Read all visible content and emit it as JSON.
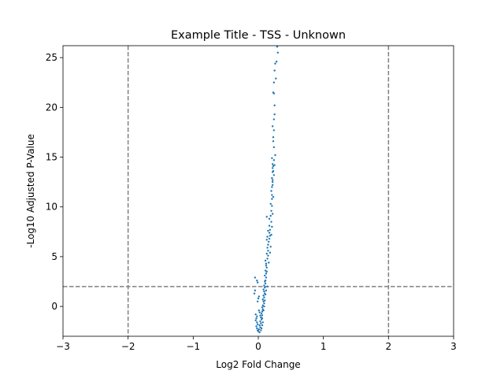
{
  "chart_data": {
    "type": "scatter",
    "title": "Example Title - TSS - Unknown",
    "xlabel": "Log2 Fold Change",
    "ylabel": "-Log10 Adjusted P-Value",
    "xlim": [
      -3,
      3
    ],
    "ylim": [
      -3,
      26.2
    ],
    "xticks": [
      -3,
      -2,
      -1,
      0,
      1,
      2,
      3
    ],
    "yticks": [
      0,
      5,
      10,
      15,
      20,
      25
    ],
    "grid": false,
    "point_color": "#1f77b4",
    "threshold_color": "#808080",
    "thresholds": {
      "x": [
        -2,
        2
      ],
      "y": [
        2
      ]
    },
    "series": [
      {
        "points": [
          [
            0.29,
            26.1
          ],
          [
            0.3,
            25.5
          ],
          [
            0.28,
            24.6
          ],
          [
            0.26,
            24.4
          ],
          [
            0.25,
            23.7
          ],
          [
            0.24,
            22.5
          ],
          [
            0.23,
            21.5
          ],
          [
            0.24,
            21.4
          ],
          [
            0.25,
            19.3
          ],
          [
            0.24,
            18.8
          ],
          [
            0.24,
            17.7
          ],
          [
            0.23,
            17.0
          ],
          [
            0.23,
            16.6
          ],
          [
            0.26,
            15.2
          ],
          [
            0.24,
            14.7
          ],
          [
            0.21,
            14.9
          ],
          [
            0.22,
            14.3
          ],
          [
            0.23,
            14.1
          ],
          [
            0.22,
            13.9
          ],
          [
            0.22,
            13.5
          ],
          [
            0.21,
            12.9
          ],
          [
            0.22,
            12.7
          ],
          [
            0.22,
            12.2
          ],
          [
            0.21,
            12.0
          ],
          [
            0.2,
            11.6
          ],
          [
            0.21,
            11.2
          ],
          [
            0.21,
            10.8
          ],
          [
            0.19,
            10.3
          ],
          [
            0.21,
            10.1
          ],
          [
            0.2,
            9.6
          ],
          [
            0.19,
            9.1
          ],
          [
            0.13,
            9.0
          ],
          [
            0.17,
            8.8
          ],
          [
            0.2,
            8.5
          ],
          [
            0.17,
            8.1
          ],
          [
            0.18,
            7.7
          ],
          [
            0.15,
            7.6
          ],
          [
            0.17,
            7.4
          ],
          [
            0.18,
            7.1
          ],
          [
            0.14,
            7.0
          ],
          [
            0.17,
            6.8
          ],
          [
            0.13,
            6.7
          ],
          [
            0.16,
            6.5
          ],
          [
            0.15,
            6.2
          ],
          [
            0.14,
            5.9
          ],
          [
            0.15,
            5.6
          ],
          [
            0.13,
            5.3
          ],
          [
            0.15,
            5.1
          ],
          [
            0.14,
            4.8
          ],
          [
            0.11,
            4.6
          ],
          [
            0.12,
            4.3
          ],
          [
            0.12,
            4.1
          ],
          [
            0.13,
            3.9
          ],
          [
            0.11,
            3.6
          ],
          [
            0.12,
            3.3
          ],
          [
            0.1,
            3.1
          ],
          [
            0.12,
            2.9
          ],
          [
            0.11,
            2.6
          ],
          [
            0.1,
            2.5
          ],
          [
            0.11,
            2.3
          ],
          [
            0.09,
            2.1
          ],
          [
            -0.05,
            2.9
          ],
          [
            -0.02,
            2.6
          ],
          [
            -0.01,
            2.4
          ],
          [
            0.1,
            1.9
          ],
          [
            0.08,
            1.7
          ],
          [
            0.09,
            1.5
          ],
          [
            0.1,
            1.3
          ],
          [
            0.08,
            1.1
          ],
          [
            0.09,
            0.9
          ],
          [
            0.07,
            0.7
          ],
          [
            0.08,
            0.5
          ],
          [
            0.09,
            0.3
          ],
          [
            0.07,
            0.1
          ],
          [
            0.06,
            -0.1
          ],
          [
            0.07,
            -0.3
          ],
          [
            0.06,
            -0.5
          ],
          [
            0.05,
            -0.7
          ],
          [
            0.06,
            -0.9
          ],
          [
            0.04,
            -1.1
          ],
          [
            0.05,
            -1.3
          ],
          [
            0.03,
            -1.5
          ],
          [
            0.04,
            -1.7
          ],
          [
            0.02,
            -1.9
          ],
          [
            0.03,
            -2.1
          ],
          [
            0.01,
            -2.3
          ],
          [
            0.0,
            -2.5
          ],
          [
            0.02,
            -2.6
          ],
          [
            -0.01,
            -2.4
          ],
          [
            -0.02,
            -2.2
          ],
          [
            -0.03,
            -2.0
          ],
          [
            -0.01,
            -1.8
          ],
          [
            -0.02,
            -1.6
          ],
          [
            -0.04,
            -1.4
          ],
          [
            -0.03,
            -1.2
          ],
          [
            -0.02,
            -1.0
          ],
          [
            -0.04,
            -0.8
          ],
          [
            -0.06,
            1.3
          ],
          [
            -0.05,
            1.6
          ],
          [
            -0.01,
            0.5
          ],
          [
            0.0,
            0.8
          ],
          [
            0.01,
            1.0
          ],
          [
            0.02,
            -0.6
          ],
          [
            0.01,
            -0.4
          ],
          [
            0.03,
            -0.9
          ],
          [
            0.04,
            -2.4
          ],
          [
            0.05,
            -2.2
          ],
          [
            0.06,
            -1.9
          ],
          [
            0.07,
            -1.6
          ],
          [
            0.06,
            -1.2
          ],
          [
            0.08,
            -0.4
          ],
          [
            0.09,
            0.0
          ],
          [
            0.1,
            0.6
          ],
          [
            0.11,
            1.2
          ],
          [
            0.12,
            1.6
          ],
          [
            0.14,
            2.0
          ],
          [
            0.13,
            3.5
          ],
          [
            0.16,
            4.4
          ],
          [
            0.18,
            5.4
          ],
          [
            0.19,
            6.0
          ],
          [
            0.2,
            7.2
          ],
          [
            0.21,
            8.0
          ],
          [
            0.22,
            9.3
          ],
          [
            0.23,
            11.0
          ],
          [
            0.22,
            12.5
          ],
          [
            0.24,
            13.2
          ],
          [
            0.23,
            13.6
          ],
          [
            0.25,
            14.2
          ],
          [
            0.24,
            16.0
          ],
          [
            0.22,
            18.1
          ],
          [
            0.25,
            20.2
          ],
          [
            0.27,
            22.9
          ]
        ]
      }
    ]
  }
}
